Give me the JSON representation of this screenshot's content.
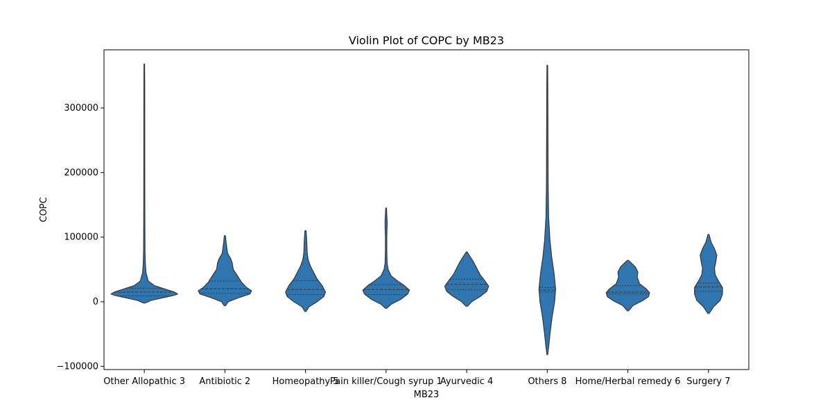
{
  "chart_data": {
    "type": "violin",
    "title": "Violin Plot of COPC by MB23",
    "xlabel": "MB23",
    "ylabel": "COPC",
    "ylim": [
      -105000,
      390000
    ],
    "yticks": [
      -100000,
      0,
      100000,
      200000,
      300000
    ],
    "ytick_labels": [
      "−100000",
      "0",
      "100000",
      "200000",
      "300000"
    ],
    "grid": false,
    "legend": "none",
    "violin_color": "#2f76b0",
    "edge_color": "#3b3b3b",
    "inner": "quartile",
    "categories": [
      "Other Allopathic 3",
      "Antibiotic 2",
      "Homeopathy 5",
      "Pain killer/Cough syrup 1",
      "Ayurvedic 4",
      "Others 8",
      "Home/Herbal remedy 6",
      "Surgery 7"
    ],
    "violins": [
      {
        "category": "Other Allopathic 3",
        "quartiles": [
          9000,
          15000,
          21000
        ],
        "profile": [
          [
            -2000,
            0.02
          ],
          [
            2000,
            0.2
          ],
          [
            6000,
            0.55
          ],
          [
            10000,
            0.9
          ],
          [
            12000,
            1.0
          ],
          [
            15000,
            0.9
          ],
          [
            20000,
            0.6
          ],
          [
            25000,
            0.3
          ],
          [
            32000,
            0.12
          ],
          [
            45000,
            0.05
          ],
          [
            60000,
            0.03
          ],
          [
            80000,
            0.02
          ],
          [
            150000,
            0.015
          ],
          [
            250000,
            0.013
          ],
          [
            340000,
            0.012
          ],
          [
            368000,
            0.008
          ]
        ]
      },
      {
        "category": "Antibiotic 2",
        "quartiles": [
          13000,
          20000,
          32000
        ],
        "profile": [
          [
            -6000,
            0.02
          ],
          [
            0,
            0.1
          ],
          [
            6000,
            0.4
          ],
          [
            12000,
            0.75
          ],
          [
            17000,
            0.8
          ],
          [
            22000,
            0.65
          ],
          [
            30000,
            0.5
          ],
          [
            40000,
            0.38
          ],
          [
            50000,
            0.25
          ],
          [
            60000,
            0.22
          ],
          [
            66000,
            0.18
          ],
          [
            75000,
            0.08
          ],
          [
            90000,
            0.04
          ],
          [
            102000,
            0.015
          ]
        ]
      },
      {
        "category": "Homeopathy 5",
        "quartiles": [
          11000,
          19000,
          33000
        ],
        "profile": [
          [
            -15000,
            0.02
          ],
          [
            -8000,
            0.1
          ],
          [
            0,
            0.35
          ],
          [
            8000,
            0.55
          ],
          [
            15000,
            0.6
          ],
          [
            25000,
            0.5
          ],
          [
            35000,
            0.35
          ],
          [
            45000,
            0.25
          ],
          [
            55000,
            0.15
          ],
          [
            65000,
            0.08
          ],
          [
            75000,
            0.05
          ],
          [
            90000,
            0.04
          ],
          [
            100000,
            0.03
          ],
          [
            110000,
            0.015
          ]
        ]
      },
      {
        "category": "Pain killer/Cough syrup 1",
        "quartiles": [
          11000,
          19000,
          26000
        ],
        "profile": [
          [
            -10000,
            0.02
          ],
          [
            -4000,
            0.15
          ],
          [
            4000,
            0.45
          ],
          [
            12000,
            0.65
          ],
          [
            18000,
            0.7
          ],
          [
            25000,
            0.55
          ],
          [
            32000,
            0.35
          ],
          [
            40000,
            0.15
          ],
          [
            50000,
            0.06
          ],
          [
            60000,
            0.03
          ],
          [
            80000,
            0.02
          ],
          [
            100000,
            0.02
          ],
          [
            118000,
            0.03
          ],
          [
            125000,
            0.03
          ],
          [
            135000,
            0.02
          ],
          [
            145000,
            0.01
          ]
        ]
      },
      {
        "category": "Ayurvedic 4",
        "quartiles": [
          19000,
          27000,
          35000
        ],
        "profile": [
          [
            -7000,
            0.02
          ],
          [
            0,
            0.15
          ],
          [
            8000,
            0.4
          ],
          [
            16000,
            0.6
          ],
          [
            24000,
            0.66
          ],
          [
            32000,
            0.55
          ],
          [
            42000,
            0.4
          ],
          [
            52000,
            0.3
          ],
          [
            62000,
            0.2
          ],
          [
            70000,
            0.1
          ],
          [
            77000,
            0.015
          ]
        ]
      },
      {
        "category": "Others 8",
        "quartiles": [
          15000,
          18000,
          22000
        ],
        "profile": [
          [
            -82000,
            0.01
          ],
          [
            -70000,
            0.04
          ],
          [
            -50000,
            0.08
          ],
          [
            -25000,
            0.14
          ],
          [
            0,
            0.22
          ],
          [
            20000,
            0.25
          ],
          [
            45000,
            0.2
          ],
          [
            70000,
            0.13
          ],
          [
            95000,
            0.08
          ],
          [
            130000,
            0.04
          ],
          [
            180000,
            0.025
          ],
          [
            250000,
            0.02
          ],
          [
            330000,
            0.015
          ],
          [
            366000,
            0.01
          ]
        ]
      },
      {
        "category": "Home/Herbal remedy 6",
        "quartiles": [
          12000,
          15000,
          25000
        ],
        "profile": [
          [
            -14000,
            0.02
          ],
          [
            -6000,
            0.15
          ],
          [
            2000,
            0.45
          ],
          [
            8000,
            0.62
          ],
          [
            14000,
            0.65
          ],
          [
            20000,
            0.55
          ],
          [
            28000,
            0.35
          ],
          [
            38000,
            0.28
          ],
          [
            46000,
            0.3
          ],
          [
            54000,
            0.22
          ],
          [
            60000,
            0.1
          ],
          [
            64000,
            0.015
          ]
        ]
      },
      {
        "category": "Surgery 7",
        "quartiles": [
          16000,
          23000,
          29000
        ],
        "profile": [
          [
            -18000,
            0.02
          ],
          [
            -8000,
            0.15
          ],
          [
            2000,
            0.35
          ],
          [
            12000,
            0.42
          ],
          [
            22000,
            0.42
          ],
          [
            32000,
            0.3
          ],
          [
            42000,
            0.2
          ],
          [
            52000,
            0.18
          ],
          [
            62000,
            0.22
          ],
          [
            72000,
            0.25
          ],
          [
            82000,
            0.18
          ],
          [
            92000,
            0.08
          ],
          [
            104000,
            0.015
          ]
        ]
      }
    ]
  }
}
